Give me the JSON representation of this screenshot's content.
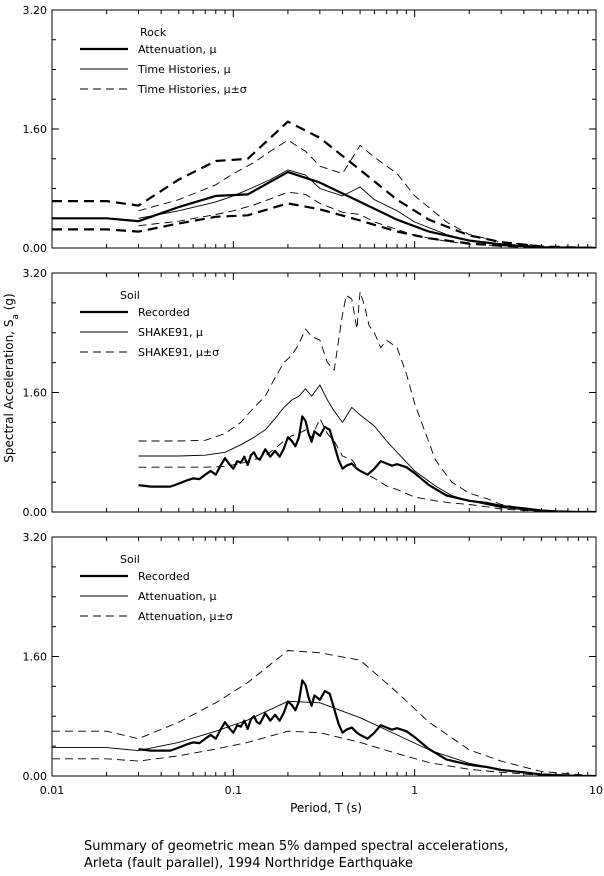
{
  "chart_data": [
    {
      "type": "line",
      "x_scale": "log",
      "xlim": [
        0.01,
        10
      ],
      "ylim": [
        0,
        3.2
      ],
      "yticks": [
        "0.00",
        "1.60",
        "3.20"
      ],
      "legend_title": "Rock",
      "series": [
        {
          "name": "Attenuation, μ",
          "style": "thick-solid",
          "x": [
            0.01,
            0.02,
            0.03,
            0.05,
            0.08,
            0.12,
            0.2,
            0.3,
            0.5,
            0.8,
            1.2,
            2,
            3,
            5,
            10
          ],
          "y": [
            0.4,
            0.4,
            0.36,
            0.55,
            0.7,
            0.72,
            1.02,
            0.88,
            0.62,
            0.38,
            0.22,
            0.1,
            0.05,
            0.01,
            0.0
          ]
        },
        {
          "name": "Time Histories, μ",
          "style": "thin-solid",
          "x": [
            0.03,
            0.05,
            0.08,
            0.1,
            0.13,
            0.16,
            0.2,
            0.25,
            0.3,
            0.4,
            0.5,
            0.6,
            0.8,
            1.0,
            1.5,
            2,
            3,
            5
          ],
          "y": [
            0.4,
            0.5,
            0.62,
            0.7,
            0.82,
            0.92,
            1.05,
            0.98,
            0.8,
            0.7,
            0.82,
            0.65,
            0.5,
            0.35,
            0.18,
            0.1,
            0.05,
            0.02
          ]
        },
        {
          "name": "Time Histories, μ±σ",
          "style": "thin-dash",
          "x": [
            0.03,
            0.05,
            0.08,
            0.1,
            0.13,
            0.16,
            0.2,
            0.25,
            0.3,
            0.4,
            0.5,
            0.6,
            0.8,
            1.0,
            1.5,
            2,
            3,
            5
          ],
          "y": [
            0.5,
            0.65,
            0.85,
            1.0,
            1.15,
            1.3,
            1.45,
            1.3,
            1.1,
            1.0,
            1.38,
            1.22,
            1.0,
            0.7,
            0.35,
            0.18,
            0.08,
            0.03
          ]
        },
        {
          "name": "Time Histories, μ±σ",
          "style": "thin-dash",
          "x": [
            0.03,
            0.05,
            0.08,
            0.1,
            0.13,
            0.16,
            0.2,
            0.25,
            0.3,
            0.4,
            0.5,
            0.6,
            0.8,
            1.0,
            1.5,
            2,
            3,
            5
          ],
          "y": [
            0.3,
            0.36,
            0.45,
            0.5,
            0.58,
            0.66,
            0.75,
            0.72,
            0.6,
            0.48,
            0.45,
            0.35,
            0.25,
            0.17,
            0.09,
            0.05,
            0.03,
            0.01
          ]
        },
        {
          "name": "",
          "style": "thick-dash",
          "x": [
            0.01,
            0.02,
            0.03,
            0.05,
            0.08,
            0.12,
            0.2,
            0.3,
            0.5,
            0.8,
            1.2,
            2,
            3,
            5,
            10
          ],
          "y": [
            0.63,
            0.63,
            0.57,
            0.92,
            1.17,
            1.2,
            1.7,
            1.48,
            1.05,
            0.65,
            0.38,
            0.17,
            0.08,
            0.02,
            0.0
          ]
        },
        {
          "name": "",
          "style": "thick-dash",
          "x": [
            0.01,
            0.02,
            0.03,
            0.05,
            0.08,
            0.12,
            0.2,
            0.3,
            0.5,
            0.8,
            1.2,
            2,
            3,
            5,
            10
          ],
          "y": [
            0.25,
            0.25,
            0.22,
            0.33,
            0.42,
            0.44,
            0.6,
            0.52,
            0.37,
            0.22,
            0.13,
            0.06,
            0.03,
            0.01,
            0.0
          ]
        }
      ]
    },
    {
      "type": "line",
      "x_scale": "log",
      "xlim": [
        0.01,
        10
      ],
      "ylim": [
        0,
        3.2
      ],
      "yticks": [
        "0.00",
        "1.60",
        "3.20"
      ],
      "legend_title": "Soil",
      "series": [
        {
          "name": "Recorded",
          "style": "thick-solid",
          "x": [
            0.03,
            0.035,
            0.04,
            0.045,
            0.05,
            0.055,
            0.06,
            0.065,
            0.07,
            0.075,
            0.08,
            0.085,
            0.09,
            0.095,
            0.1,
            0.105,
            0.11,
            0.115,
            0.12,
            0.125,
            0.13,
            0.135,
            0.14,
            0.15,
            0.16,
            0.17,
            0.18,
            0.19,
            0.2,
            0.21,
            0.22,
            0.23,
            0.24,
            0.25,
            0.26,
            0.27,
            0.28,
            0.3,
            0.32,
            0.34,
            0.36,
            0.38,
            0.4,
            0.42,
            0.45,
            0.48,
            0.5,
            0.55,
            0.6,
            0.65,
            0.7,
            0.75,
            0.8,
            0.9,
            1.0,
            1.2,
            1.5,
            2,
            2.5,
            3,
            4,
            5,
            6,
            8,
            10
          ],
          "y": [
            0.36,
            0.34,
            0.34,
            0.34,
            0.38,
            0.42,
            0.45,
            0.44,
            0.5,
            0.55,
            0.5,
            0.62,
            0.72,
            0.64,
            0.58,
            0.68,
            0.66,
            0.74,
            0.63,
            0.76,
            0.8,
            0.72,
            0.7,
            0.84,
            0.74,
            0.82,
            0.74,
            0.85,
            1.0,
            0.95,
            0.88,
            1.0,
            1.28,
            1.22,
            1.05,
            0.94,
            1.08,
            1.02,
            1.14,
            1.1,
            0.9,
            0.7,
            0.58,
            0.62,
            0.65,
            0.58,
            0.55,
            0.5,
            0.58,
            0.68,
            0.65,
            0.62,
            0.64,
            0.6,
            0.52,
            0.36,
            0.22,
            0.15,
            0.12,
            0.08,
            0.05,
            0.02,
            0.01,
            0.0,
            0.0
          ]
        },
        {
          "name": "SHAKE91, μ",
          "style": "thin-solid",
          "x": [
            0.03,
            0.05,
            0.07,
            0.09,
            0.11,
            0.13,
            0.15,
            0.17,
            0.19,
            0.21,
            0.23,
            0.25,
            0.27,
            0.3,
            0.33,
            0.36,
            0.4,
            0.45,
            0.5,
            0.6,
            0.7,
            0.8,
            1.0,
            1.3,
            1.6,
            2,
            2.5,
            3,
            4,
            5,
            7,
            10
          ],
          "y": [
            0.75,
            0.75,
            0.76,
            0.8,
            0.9,
            1.0,
            1.1,
            1.25,
            1.4,
            1.5,
            1.55,
            1.65,
            1.55,
            1.7,
            1.5,
            1.35,
            1.2,
            1.4,
            1.3,
            1.15,
            0.95,
            0.8,
            0.55,
            0.35,
            0.22,
            0.15,
            0.1,
            0.06,
            0.03,
            0.01,
            0.0,
            0.0
          ]
        },
        {
          "name": "SHAKE91, μ±σ",
          "style": "thin-dash",
          "x": [
            0.03,
            0.05,
            0.07,
            0.09,
            0.11,
            0.13,
            0.15,
            0.17,
            0.19,
            0.21,
            0.23,
            0.25,
            0.27,
            0.3,
            0.33,
            0.36,
            0.4,
            0.42,
            0.45,
            0.48,
            0.5,
            0.53,
            0.56,
            0.6,
            0.65,
            0.7,
            0.8,
            0.9,
            1.0,
            1.3,
            1.6,
            2,
            2.5,
            3,
            4,
            5,
            7,
            10
          ],
          "y": [
            0.95,
            0.95,
            0.96,
            1.05,
            1.2,
            1.4,
            1.55,
            1.8,
            2.0,
            2.1,
            2.25,
            2.45,
            2.35,
            2.3,
            2.0,
            1.9,
            2.65,
            2.9,
            2.85,
            2.45,
            2.95,
            2.75,
            2.5,
            2.4,
            2.2,
            2.3,
            2.2,
            1.85,
            1.45,
            0.7,
            0.4,
            0.25,
            0.18,
            0.1,
            0.05,
            0.02,
            0.0,
            0.0
          ]
        },
        {
          "name": "SHAKE91, μ±σ",
          "style": "thin-dash",
          "x": [
            0.03,
            0.05,
            0.07,
            0.09,
            0.11,
            0.13,
            0.15,
            0.17,
            0.19,
            0.21,
            0.23,
            0.25,
            0.27,
            0.3,
            0.33,
            0.36,
            0.4,
            0.45,
            0.5,
            0.6,
            0.7,
            0.8,
            1.0,
            1.3,
            1.6,
            2,
            2.5,
            3,
            4,
            5,
            7,
            10
          ],
          "y": [
            0.6,
            0.6,
            0.6,
            0.61,
            0.65,
            0.7,
            0.75,
            0.85,
            0.95,
            1.02,
            1.05,
            1.1,
            1.0,
            1.25,
            1.05,
            0.95,
            0.75,
            0.7,
            0.55,
            0.45,
            0.35,
            0.3,
            0.2,
            0.15,
            0.12,
            0.1,
            0.07,
            0.04,
            0.02,
            0.01,
            0.0,
            0.0
          ]
        }
      ]
    },
    {
      "type": "line",
      "x_scale": "log",
      "xlim": [
        0.01,
        10
      ],
      "ylim": [
        0,
        3.2
      ],
      "yticks": [
        "0.00",
        "1.60",
        "3.20"
      ],
      "xticks": [
        "0.01",
        "0.1",
        "1",
        "10"
      ],
      "xlabel": "Period, T (s)",
      "legend_title": "Soil",
      "series": [
        {
          "name": "Recorded",
          "style": "thick-solid",
          "x": [
            0.03,
            0.035,
            0.04,
            0.045,
            0.05,
            0.055,
            0.06,
            0.065,
            0.07,
            0.075,
            0.08,
            0.085,
            0.09,
            0.095,
            0.1,
            0.105,
            0.11,
            0.115,
            0.12,
            0.125,
            0.13,
            0.135,
            0.14,
            0.15,
            0.16,
            0.17,
            0.18,
            0.19,
            0.2,
            0.21,
            0.22,
            0.23,
            0.24,
            0.25,
            0.26,
            0.27,
            0.28,
            0.3,
            0.32,
            0.34,
            0.36,
            0.38,
            0.4,
            0.42,
            0.45,
            0.48,
            0.5,
            0.55,
            0.6,
            0.65,
            0.7,
            0.75,
            0.8,
            0.9,
            1.0,
            1.2,
            1.5,
            2,
            2.5,
            3,
            4,
            5,
            6,
            8,
            10
          ],
          "y": [
            0.36,
            0.34,
            0.34,
            0.34,
            0.38,
            0.42,
            0.45,
            0.44,
            0.5,
            0.55,
            0.5,
            0.62,
            0.72,
            0.64,
            0.58,
            0.68,
            0.66,
            0.74,
            0.63,
            0.76,
            0.8,
            0.72,
            0.7,
            0.84,
            0.74,
            0.82,
            0.74,
            0.85,
            1.0,
            0.95,
            0.88,
            1.0,
            1.28,
            1.22,
            1.05,
            0.94,
            1.08,
            1.02,
            1.14,
            1.1,
            0.9,
            0.7,
            0.58,
            0.62,
            0.65,
            0.58,
            0.55,
            0.5,
            0.58,
            0.68,
            0.65,
            0.62,
            0.64,
            0.6,
            0.52,
            0.36,
            0.22,
            0.15,
            0.12,
            0.08,
            0.05,
            0.02,
            0.01,
            0.0,
            0.0
          ]
        },
        {
          "name": "Attenuation, μ",
          "style": "thin-solid",
          "x": [
            0.01,
            0.02,
            0.03,
            0.05,
            0.08,
            0.12,
            0.2,
            0.3,
            0.5,
            0.8,
            1.2,
            2,
            3,
            5,
            10
          ],
          "y": [
            0.38,
            0.38,
            0.34,
            0.45,
            0.6,
            0.75,
            1.0,
            0.98,
            0.78,
            0.55,
            0.35,
            0.17,
            0.09,
            0.03,
            0.0
          ]
        },
        {
          "name": "Attenuation, μ±σ",
          "style": "thin-dash",
          "x": [
            0.01,
            0.02,
            0.03,
            0.05,
            0.08,
            0.12,
            0.2,
            0.3,
            0.5,
            0.8,
            1.2,
            2,
            3,
            5,
            10
          ],
          "y": [
            0.6,
            0.6,
            0.5,
            0.72,
            0.98,
            1.25,
            1.68,
            1.65,
            1.55,
            1.12,
            0.72,
            0.35,
            0.2,
            0.06,
            0.0
          ]
        },
        {
          "name": "Attenuation, μ±σ",
          "style": "thin-dash",
          "x": [
            0.01,
            0.02,
            0.03,
            0.05,
            0.08,
            0.12,
            0.2,
            0.3,
            0.5,
            0.8,
            1.2,
            2,
            3,
            5,
            10
          ],
          "y": [
            0.23,
            0.23,
            0.2,
            0.27,
            0.36,
            0.45,
            0.6,
            0.58,
            0.45,
            0.3,
            0.18,
            0.09,
            0.05,
            0.01,
            0.0
          ]
        }
      ]
    }
  ],
  "y_axis_label": {
    "main": "Spectral Acceleration, S",
    "sub": "a",
    "unit": " (g)"
  },
  "caption": {
    "line1": "Summary of geometric mean 5% damped spectral accelerations,",
    "line2": "Arleta (fault parallel), 1994 Northridge Earthquake"
  }
}
